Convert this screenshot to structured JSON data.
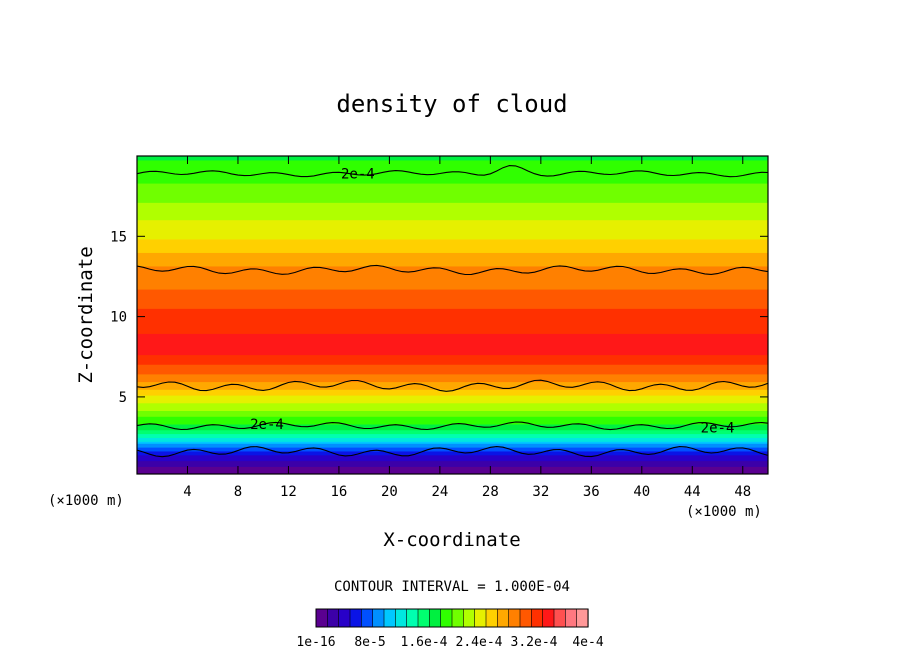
{
  "chart_data": {
    "type": "heatmap",
    "title": "density of cloud",
    "xlabel": "X-coordinate",
    "ylabel": "Z-coordinate",
    "x_unit_left": "(×1000 m)",
    "x_unit_right": "(×1000 m)",
    "xlim": [
      0,
      50
    ],
    "ylim": [
      0.2,
      20
    ],
    "x_ticks": [
      4,
      8,
      12,
      16,
      20,
      24,
      28,
      32,
      36,
      40,
      44,
      48
    ],
    "y_ticks": [
      5,
      10,
      15
    ],
    "contour_interval_text": "CONTOUR INTERVAL = 1.000E-04",
    "contour_labels": [
      {
        "text": "2e-4",
        "x": 17.5,
        "z": 18.9
      },
      {
        "text": "2e-4",
        "x": 10.3,
        "z": 3.3
      },
      {
        "text": "2e-4",
        "x": 46.0,
        "z": 3.1
      }
    ],
    "colorbar": {
      "labels": [
        "1e-16",
        "8e-5",
        "1.6e-4",
        "2.4e-4",
        "3.2e-4",
        "4e-4"
      ],
      "label_text": [
        "1e-16",
        "8e-5",
        "1.6e-4",
        "2.4e-4",
        "3.2e-4",
        "4e-4"
      ],
      "colors": [
        "#5a0090",
        "#3c00a8",
        "#2800c8",
        "#0a14e6",
        "#0050ff",
        "#0090ff",
        "#00c8ff",
        "#00e8e0",
        "#00ffb0",
        "#00ff70",
        "#00f040",
        "#30ff00",
        "#70ff00",
        "#b0ff00",
        "#e6f000",
        "#ffd000",
        "#ffa800",
        "#ff8000",
        "#ff5800",
        "#ff3000",
        "#ff1818",
        "#ff5050",
        "#ff7880",
        "#ff9898"
      ]
    },
    "profile": [
      {
        "z": 0.5,
        "value": 1e-05
      },
      {
        "z": 1.2,
        "value": 4e-05
      },
      {
        "z": 2.0,
        "value": 0.0001
      },
      {
        "z": 3.0,
        "value": 0.00018
      },
      {
        "z": 4.0,
        "value": 0.00022
      },
      {
        "z": 5.0,
        "value": 0.00026
      },
      {
        "z": 6.0,
        "value": 0.0003
      },
      {
        "z": 8.0,
        "value": 0.00036
      },
      {
        "z": 10.0,
        "value": 0.00034
      },
      {
        "z": 12.0,
        "value": 0.00031
      },
      {
        "z": 13.0,
        "value": 0.0003
      },
      {
        "z": 15.0,
        "value": 0.00026
      },
      {
        "z": 17.0,
        "value": 0.00023
      },
      {
        "z": 19.0,
        "value": 0.0002
      },
      {
        "z": 20.0,
        "value": 0.00019
      }
    ]
  }
}
